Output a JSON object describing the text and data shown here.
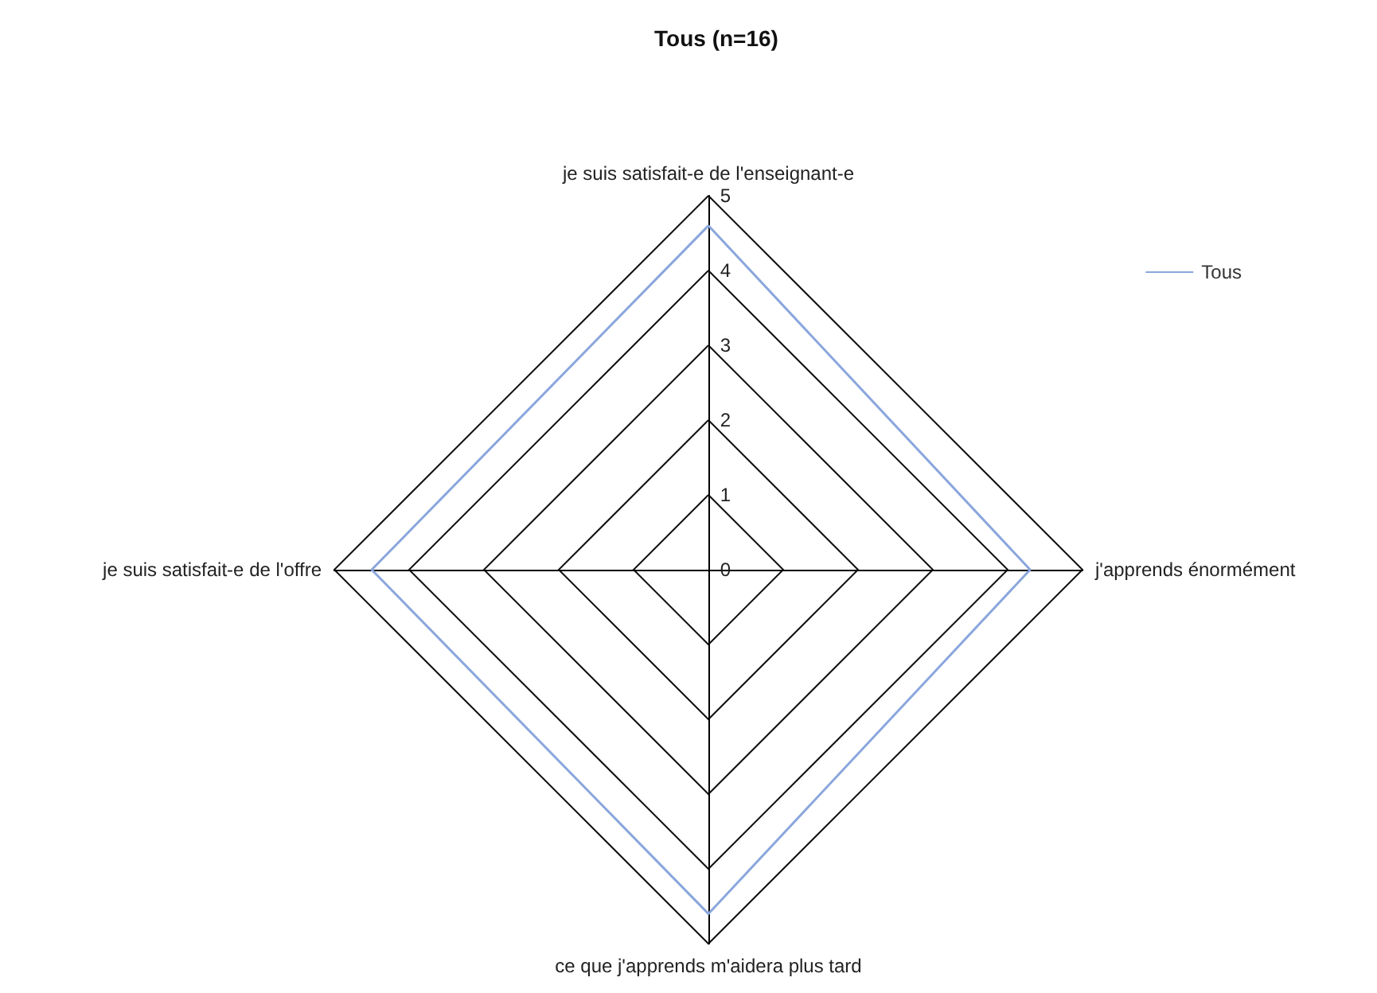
{
  "chart_data": {
    "type": "radar",
    "title": "Tous (n=16)",
    "categories": [
      "je suis satisfait-e de l'enseignant-e",
      "j'apprends énormément",
      "ce que j'apprends m'aidera plus tard",
      "je suis satisfait-e de l'offre"
    ],
    "series": [
      {
        "name": "Tous",
        "color": "#8aa6dc",
        "values": [
          4.6,
          4.3,
          4.6,
          4.5
        ]
      }
    ],
    "ylim": [
      0,
      5
    ],
    "yticks": [
      0,
      1,
      2,
      3,
      4,
      5
    ],
    "legend": "top right",
    "marker": "none"
  }
}
